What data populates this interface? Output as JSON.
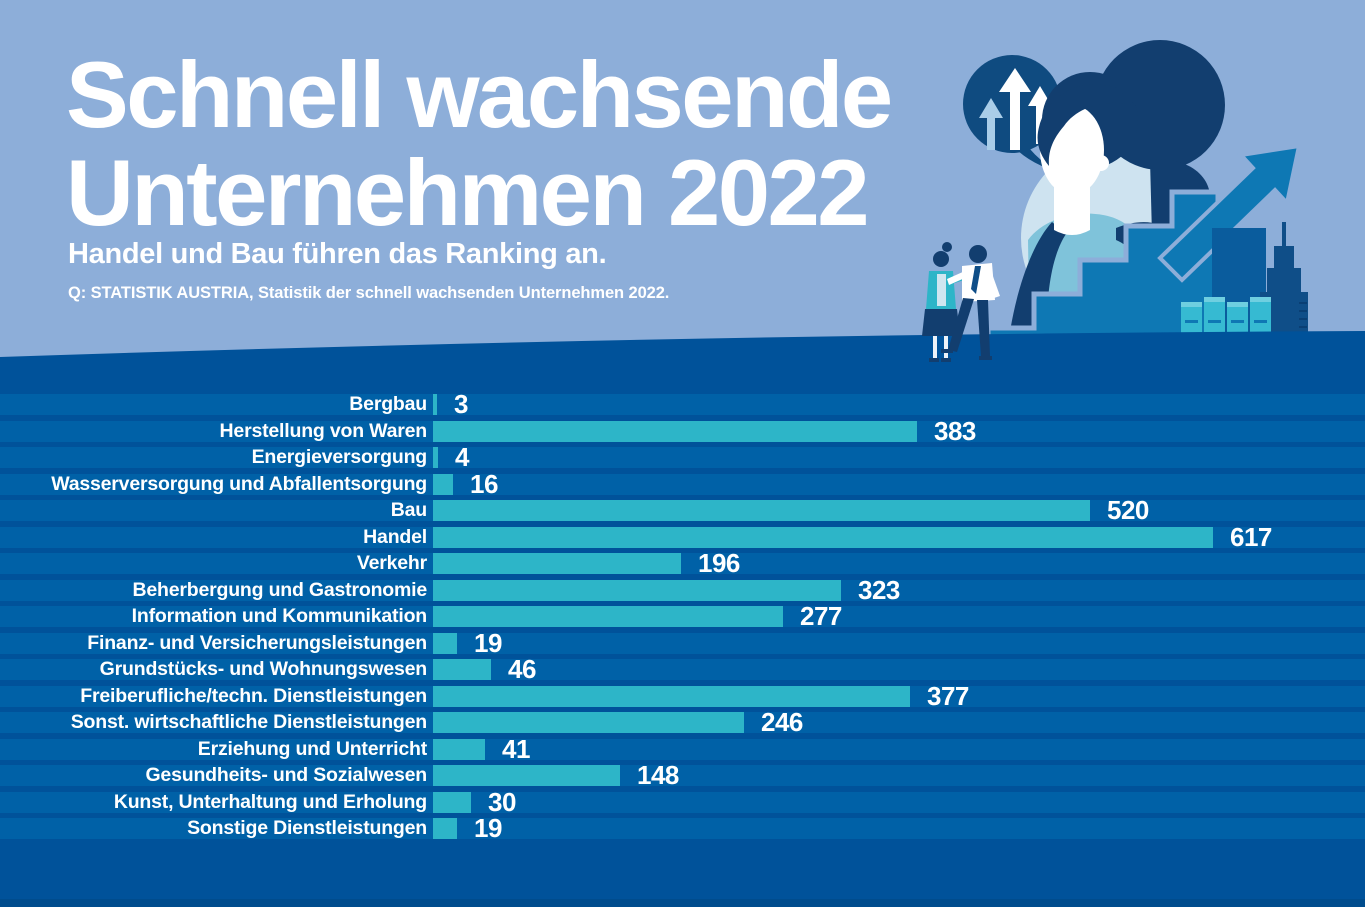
{
  "header": {
    "title_line1": "Schnell wachsende",
    "title_line2": "Unternehmen 2022",
    "subtitle": "Handel und Bau führen das Ranking an.",
    "source": "Q: STATISTIK AUSTRIA, Statistik der schnell wachsenden Unternehmen 2022."
  },
  "chart_data": {
    "type": "bar",
    "orientation": "horizontal",
    "title": "Schnell wachsende Unternehmen 2022",
    "subtitle": "Handel und Bau führen das Ranking an.",
    "source": "Q: STATISTIK AUSTRIA, Statistik der schnell wachsenden Unternehmen 2022.",
    "categories": [
      "Bergbau",
      "Herstellung von Waren",
      "Energieversorgung",
      "Wasserversorgung und Abfallentsorgung",
      "Bau",
      "Handel",
      "Verkehr",
      "Beherbergung und Gastronomie",
      "Information und Kommunikation",
      "Finanz- und Versicherungsleistungen",
      "Grundstücks- und Wohnungswesen",
      "Freiberufliche/techn. Dienstleistungen",
      "Sonst. wirtschaftliche Dienstleistungen",
      "Erziehung und Unterricht",
      "Gesundheits- und Sozialwesen",
      "Kunst, Unterhaltung und Erholung",
      "Sonstige Dienstleistungen"
    ],
    "values": [
      3,
      383,
      4,
      16,
      520,
      617,
      196,
      323,
      277,
      19,
      46,
      377,
      246,
      41,
      148,
      30,
      19
    ],
    "value_labels_shown": true,
    "axis_max": 617,
    "grid": false,
    "legend": false
  },
  "colors": {
    "header_background": "#8DAED9",
    "chart_background": "#00529A",
    "row_stripe": "#0061A7",
    "bar": "#2DB5C8",
    "footer_band": "#004C8D",
    "text": "#FFFFFF",
    "illustration_navy": "#123E6F",
    "illustration_mid_blue": "#0E78B4",
    "illustration_pale_circle": "#CEE3F0",
    "illustration_teal": "#36BAD2"
  },
  "illustration_icons": [
    "growth-arrows-speech-bubble-icon",
    "businesswoman-figure",
    "staircase-icon",
    "growth-arrow-icon",
    "city-buildings-icon",
    "business-people-figures"
  ]
}
